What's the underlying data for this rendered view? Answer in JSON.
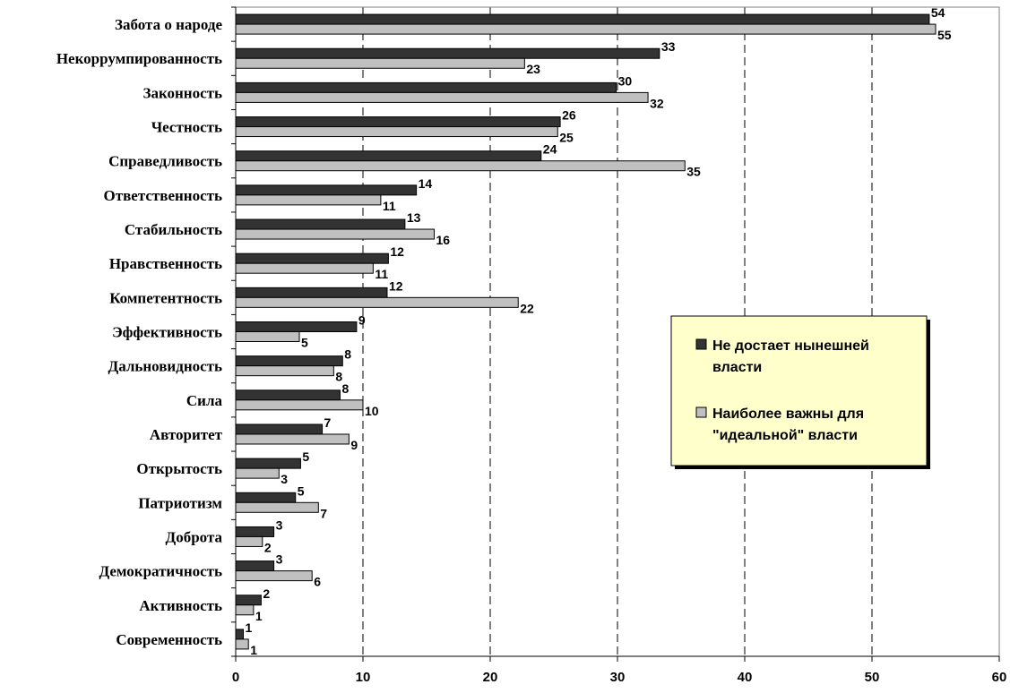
{
  "chart_data": {
    "type": "bar",
    "orientation": "horizontal",
    "categories": [
      "Забота о народе",
      "Некоррумпированность",
      "Законность",
      "Честность",
      "Справедливость",
      "Ответственность",
      "Стабильность",
      "Нравственность",
      "Компетентность",
      "Эффективность",
      "Дальновидность",
      "Сила",
      "Авторитет",
      "Открытость",
      "Патриотизм",
      "Доброта",
      "Демократичность",
      "Активность",
      "Современность"
    ],
    "series": [
      {
        "name": "Не достает нынешней власти",
        "color": "#333333",
        "values": [
          54.5,
          33.3,
          29.9,
          25.5,
          24.0,
          14.2,
          13.3,
          12.0,
          11.9,
          9.5,
          8.4,
          8.2,
          6.8,
          5.1,
          4.7,
          3.0,
          3.0,
          2.0,
          0.6
        ],
        "labels": [
          "54",
          "33",
          "30",
          "26",
          "24",
          "14",
          "13",
          "12",
          "12",
          "9",
          "8",
          "8",
          "7",
          "5",
          "5",
          "3",
          "3",
          "2",
          "1"
        ]
      },
      {
        "name": "Наиболее важны для \"идеальной\" власти",
        "color": "#c0c0c0",
        "values": [
          55.0,
          22.7,
          32.4,
          25.3,
          35.3,
          11.4,
          15.6,
          10.8,
          22.2,
          5.0,
          7.7,
          10.0,
          8.9,
          3.4,
          6.5,
          2.1,
          6.0,
          1.4,
          1.0
        ],
        "labels": [
          "55",
          "23",
          "32",
          "25",
          "35",
          "11",
          "16",
          "11",
          "22",
          "5",
          "8",
          "10",
          "9",
          "3",
          "7",
          "2",
          "6",
          "1",
          "1"
        ]
      }
    ],
    "xlim": [
      0,
      60
    ],
    "xticks": [
      0,
      10,
      20,
      30,
      40,
      50,
      60
    ],
    "grid": "vertical-dashed",
    "legend": {
      "placement": "center-right",
      "background": "#ffffcc",
      "items": [
        {
          "line1": "Не достает нынешней",
          "line2": "власти"
        },
        {
          "line1": "Наиболее важны для",
          "line2": "\"идеальной\" власти"
        }
      ]
    },
    "title": "",
    "xlabel": "",
    "ylabel": ""
  }
}
